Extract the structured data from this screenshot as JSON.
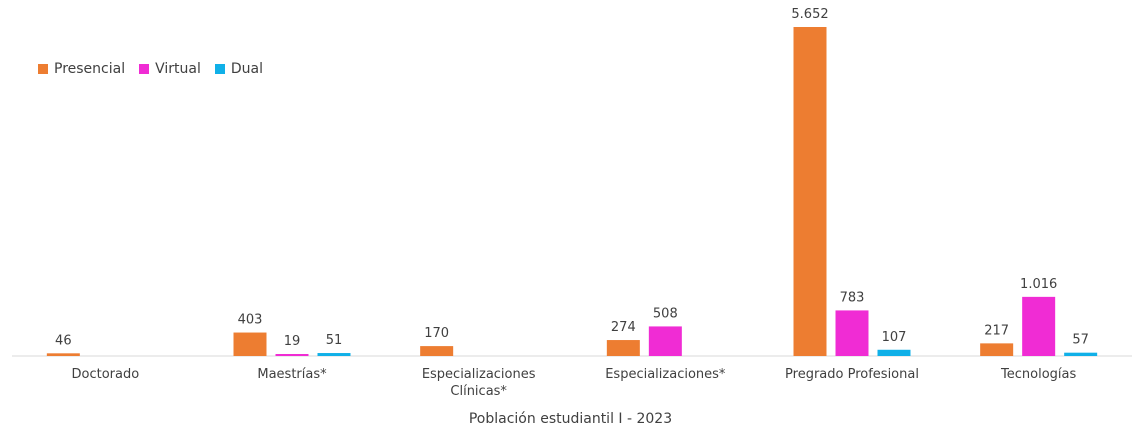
{
  "chart_data": {
    "type": "bar",
    "categories": [
      [
        "Doctorado"
      ],
      [
        "Maestrías*"
      ],
      [
        "Especializaciones",
        "Clínicas*"
      ],
      [
        "Especializaciones*"
      ],
      [
        "Pregrado Profesional"
      ],
      [
        "Tecnologías"
      ]
    ],
    "series": [
      {
        "name": "Presencial",
        "color": "#ED7D31",
        "values": [
          46,
          403,
          170,
          274,
          5652,
          217
        ],
        "labels": [
          "46",
          "403",
          "170",
          "274",
          "5.652",
          "217"
        ]
      },
      {
        "name": "Virtual",
        "color": "#F02CD4",
        "values": [
          null,
          19,
          null,
          508,
          783,
          1016
        ],
        "labels": [
          null,
          "19",
          null,
          "508",
          "783",
          "1.016"
        ]
      },
      {
        "name": "Dual",
        "color": "#10B0E8",
        "values": [
          null,
          51,
          null,
          null,
          107,
          57
        ],
        "labels": [
          null,
          "51",
          null,
          null,
          "107",
          "57"
        ]
      }
    ],
    "xlabel": "Población estudiantil I - 2023",
    "ylim": [
      0,
      5652
    ],
    "grid": false,
    "legend_position": "top-left"
  }
}
